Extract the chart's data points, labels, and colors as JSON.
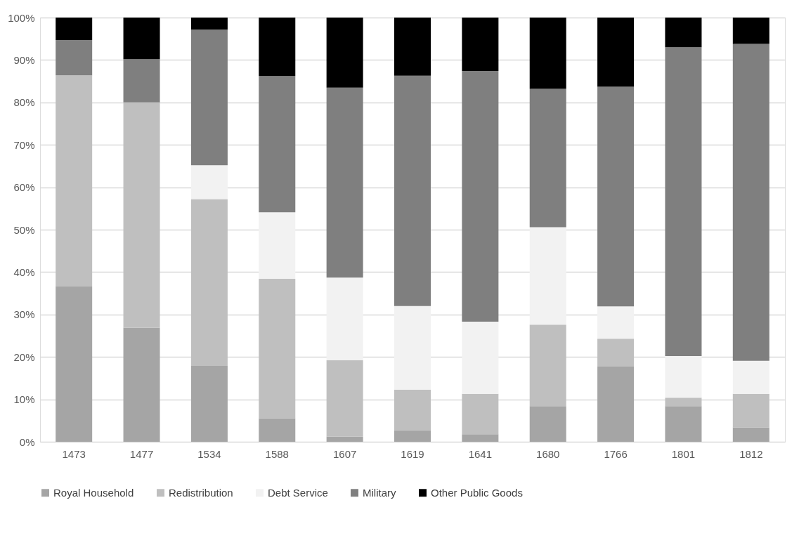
{
  "chart_data": {
    "type": "bar",
    "stacked": true,
    "categories": [
      "1473",
      "1477",
      "1534",
      "1588",
      "1607",
      "1619",
      "1641",
      "1680",
      "1766",
      "1801",
      "1812"
    ],
    "series": [
      {
        "name": "Royal Household",
        "color": "#a5a5a5",
        "values": [
          36.6,
          26.9,
          17.9,
          5.5,
          1.2,
          2.7,
          1.8,
          8.4,
          17.7,
          8.4,
          3.4
        ]
      },
      {
        "name": "Redistribution",
        "color": "#bfbfbf",
        "values": [
          49.8,
          53.1,
          39.3,
          32.9,
          18.0,
          9.6,
          9.5,
          19.2,
          6.6,
          2.0,
          7.9
        ]
      },
      {
        "name": "Debt Service",
        "color": "#f2f2f2",
        "values": [
          0,
          0,
          8.0,
          15.7,
          19.5,
          19.7,
          17.0,
          23.0,
          7.6,
          9.8,
          7.8
        ]
      },
      {
        "name": "Military",
        "color": "#7f7f7f",
        "values": [
          8.3,
          10.2,
          32.0,
          32.1,
          44.8,
          54.3,
          59.1,
          32.6,
          51.8,
          72.8,
          74.7
        ]
      },
      {
        "name": "Other Public Goods",
        "color": "#000000",
        "values": [
          5.3,
          9.8,
          2.8,
          13.8,
          16.5,
          13.7,
          12.6,
          16.8,
          16.3,
          7.0,
          6.2
        ]
      }
    ],
    "ylim": [
      0,
      100
    ],
    "yticks": [
      {
        "value": 0,
        "label": "0%"
      },
      {
        "value": 10,
        "label": "10%"
      },
      {
        "value": 20,
        "label": "20%"
      },
      {
        "value": 30,
        "label": "30%"
      },
      {
        "value": 40,
        "label": "40%"
      },
      {
        "value": 50,
        "label": "50%"
      },
      {
        "value": 60,
        "label": "60%"
      },
      {
        "value": 70,
        "label": "70%"
      },
      {
        "value": 80,
        "label": "80%"
      },
      {
        "value": 90,
        "label": "90%"
      },
      {
        "value": 100,
        "label": "100%"
      }
    ],
    "grid": "y",
    "legend": "bottom"
  }
}
